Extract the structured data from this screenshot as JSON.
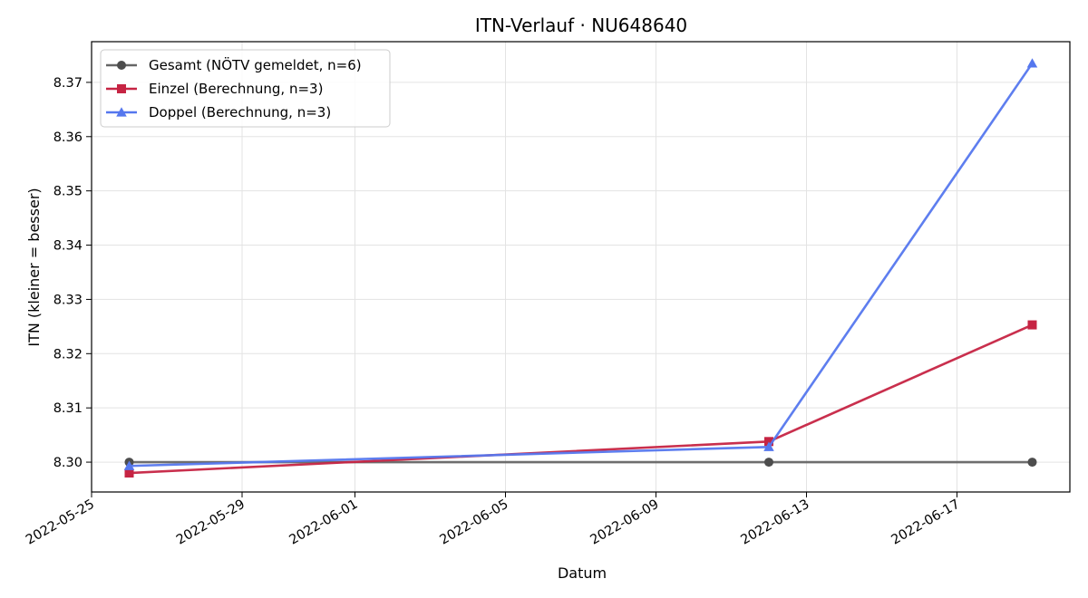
{
  "chart_data": {
    "type": "line",
    "title": "ITN-Verlauf · NU648640",
    "xlabel": "Datum",
    "ylabel": "ITN  (kleiner = besser)",
    "x_axis_type": "date",
    "xlim": [
      "2022-05-25",
      "2022-06-20"
    ],
    "ylim": [
      8.2945,
      8.3775
    ],
    "x_ticks": [
      "2022-05-25",
      "2022-05-29",
      "2022-06-01",
      "2022-06-05",
      "2022-06-09",
      "2022-06-13",
      "2022-06-17"
    ],
    "y_ticks": [
      8.3,
      8.31,
      8.32,
      8.33,
      8.34,
      8.35,
      8.36,
      8.37
    ],
    "grid": true,
    "legend_position": "top-left",
    "series": [
      {
        "name": "Gesamt (NÖTV gemeldet, n=6)",
        "color": "#666666",
        "marker": "circle",
        "x": [
          "2022-05-26",
          "2022-06-12",
          "2022-06-19"
        ],
        "y": [
          8.3,
          8.3,
          8.3
        ]
      },
      {
        "name": "Einzel (Berechnung, n=3)",
        "color": "#c62443",
        "marker": "square",
        "x": [
          "2022-05-26",
          "2022-06-12",
          "2022-06-19"
        ],
        "y": [
          8.298,
          8.3038,
          8.3253
        ]
      },
      {
        "name": "Doppel (Berechnung, n=3)",
        "color": "#5577ee",
        "marker": "triangle",
        "x": [
          "2022-05-26",
          "2022-06-12",
          "2022-06-19"
        ],
        "y": [
          8.2993,
          8.3028,
          8.3735
        ]
      }
    ]
  }
}
